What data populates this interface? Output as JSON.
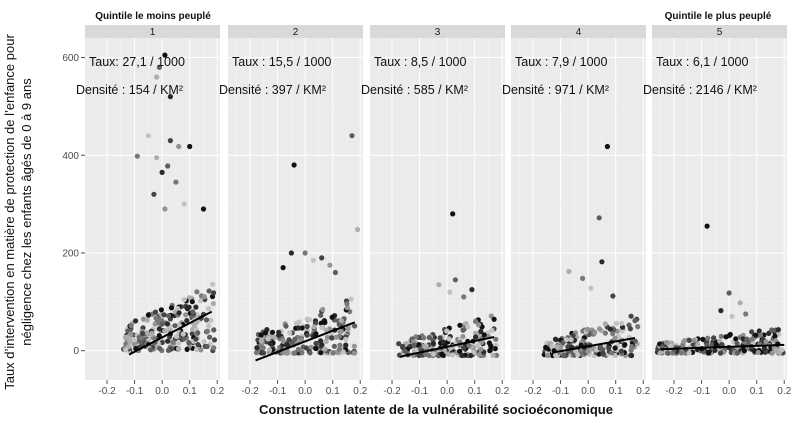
{
  "chart_data": {
    "type": "scatter",
    "xlabel": "Construction latente de la vulnérabilité socioéconomique",
    "ylabel_lines": [
      "Taux d’intervention en matière de protection de l’enfance pour",
      "négligence chez les enfants âgés de 0 à 9 ans"
    ],
    "ylim": [
      -60,
      640
    ],
    "xlim": [
      -0.28,
      0.21
    ],
    "y_ticks": [
      0,
      200,
      400,
      600
    ],
    "y_tick_labels": [
      "0",
      "200",
      "400",
      "600"
    ],
    "x_ticks": [
      -0.2,
      -0.1,
      0.0,
      0.1,
      0.2
    ],
    "x_tick_labels": [
      "-0.2",
      "-0.1",
      "0.0",
      "0.1",
      "0.2"
    ],
    "grid": true,
    "top_labels": {
      "first": "Quintile le moins peuplé",
      "last": "Quintile le plus peuplé"
    },
    "panels": [
      {
        "strip": "1",
        "rate": "Taux: 27,1 / 1000",
        "density": "Densité : 154 / KM²",
        "trend": {
          "x0": -0.12,
          "y0": -8,
          "x1": 0.18,
          "y1": 80
        },
        "outliers": [
          [
            0.01,
            605
          ],
          [
            -0.01,
            580
          ],
          [
            -0.02,
            560
          ],
          [
            0.03,
            520
          ],
          [
            -0.09,
            398
          ],
          [
            -0.05,
            440
          ],
          [
            0.03,
            430
          ],
          [
            0.06,
            418
          ],
          [
            0.1,
            418
          ],
          [
            0.02,
            378
          ],
          [
            -0.02,
            395
          ],
          [
            0.0,
            365
          ],
          [
            0.05,
            345
          ],
          [
            0.08,
            300
          ],
          [
            -0.03,
            320
          ],
          [
            0.01,
            290
          ],
          [
            0.15,
            290
          ]
        ],
        "cloud": {
          "xmin": -0.14,
          "xmax": 0.19,
          "ymin": 0,
          "ymax": 140,
          "n": 240,
          "seed": 11
        }
      },
      {
        "strip": "2",
        "rate": "Taux : 15,5 / 1000",
        "density": "Densité : 397 / KM²",
        "trend": {
          "x0": -0.18,
          "y0": -20,
          "x1": 0.18,
          "y1": 58
        },
        "outliers": [
          [
            -0.04,
            380
          ],
          [
            0.17,
            440
          ],
          [
            0.19,
            248
          ],
          [
            -0.05,
            200
          ],
          [
            0.0,
            200
          ],
          [
            0.03,
            185
          ],
          [
            0.06,
            190
          ],
          [
            0.09,
            175
          ],
          [
            -0.08,
            170
          ],
          [
            0.11,
            160
          ]
        ],
        "cloud": {
          "xmin": -0.18,
          "xmax": 0.18,
          "ymin": -5,
          "ymax": 110,
          "n": 220,
          "seed": 23
        }
      },
      {
        "strip": "3",
        "rate": "Taux : 8,5 / 1000",
        "density": "Densité : 585 / KM²",
        "trend": {
          "x0": -0.17,
          "y0": -12,
          "x1": 0.17,
          "y1": 28
        },
        "outliers": [
          [
            0.02,
            280
          ],
          [
            0.03,
            145
          ],
          [
            -0.03,
            135
          ],
          [
            0.09,
            125
          ],
          [
            0.06,
            110
          ],
          [
            0.01,
            120
          ]
        ],
        "cloud": {
          "xmin": -0.18,
          "xmax": 0.18,
          "ymin": -10,
          "ymax": 75,
          "n": 200,
          "seed": 37
        }
      },
      {
        "strip": "4",
        "rate": "Taux : 7,9 / 1000",
        "density": "Densité : 971 / KM²",
        "trend": {
          "x0": -0.13,
          "y0": -4,
          "x1": 0.17,
          "y1": 26
        },
        "outliers": [
          [
            0.07,
            418
          ],
          [
            0.04,
            272
          ],
          [
            -0.07,
            162
          ],
          [
            0.05,
            182
          ],
          [
            -0.02,
            148
          ],
          [
            0.01,
            128
          ],
          [
            0.09,
            112
          ]
        ],
        "cloud": {
          "xmin": -0.16,
          "xmax": 0.18,
          "ymin": -10,
          "ymax": 75,
          "n": 200,
          "seed": 51
        }
      },
      {
        "strip": "5",
        "rate": "Taux : 6,1 / 1000",
        "density": "Densité : 2146 / KM²",
        "trend": {
          "x0": -0.25,
          "y0": 3,
          "x1": 0.2,
          "y1": 12
        },
        "outliers": [
          [
            -0.08,
            255
          ],
          [
            0.0,
            118
          ],
          [
            0.04,
            98
          ],
          [
            -0.03,
            82
          ],
          [
            0.06,
            75
          ],
          [
            0.01,
            70
          ]
        ],
        "cloud": {
          "xmin": -0.26,
          "xmax": 0.2,
          "ymin": -5,
          "ymax": 50,
          "n": 230,
          "seed": 67
        }
      }
    ]
  }
}
